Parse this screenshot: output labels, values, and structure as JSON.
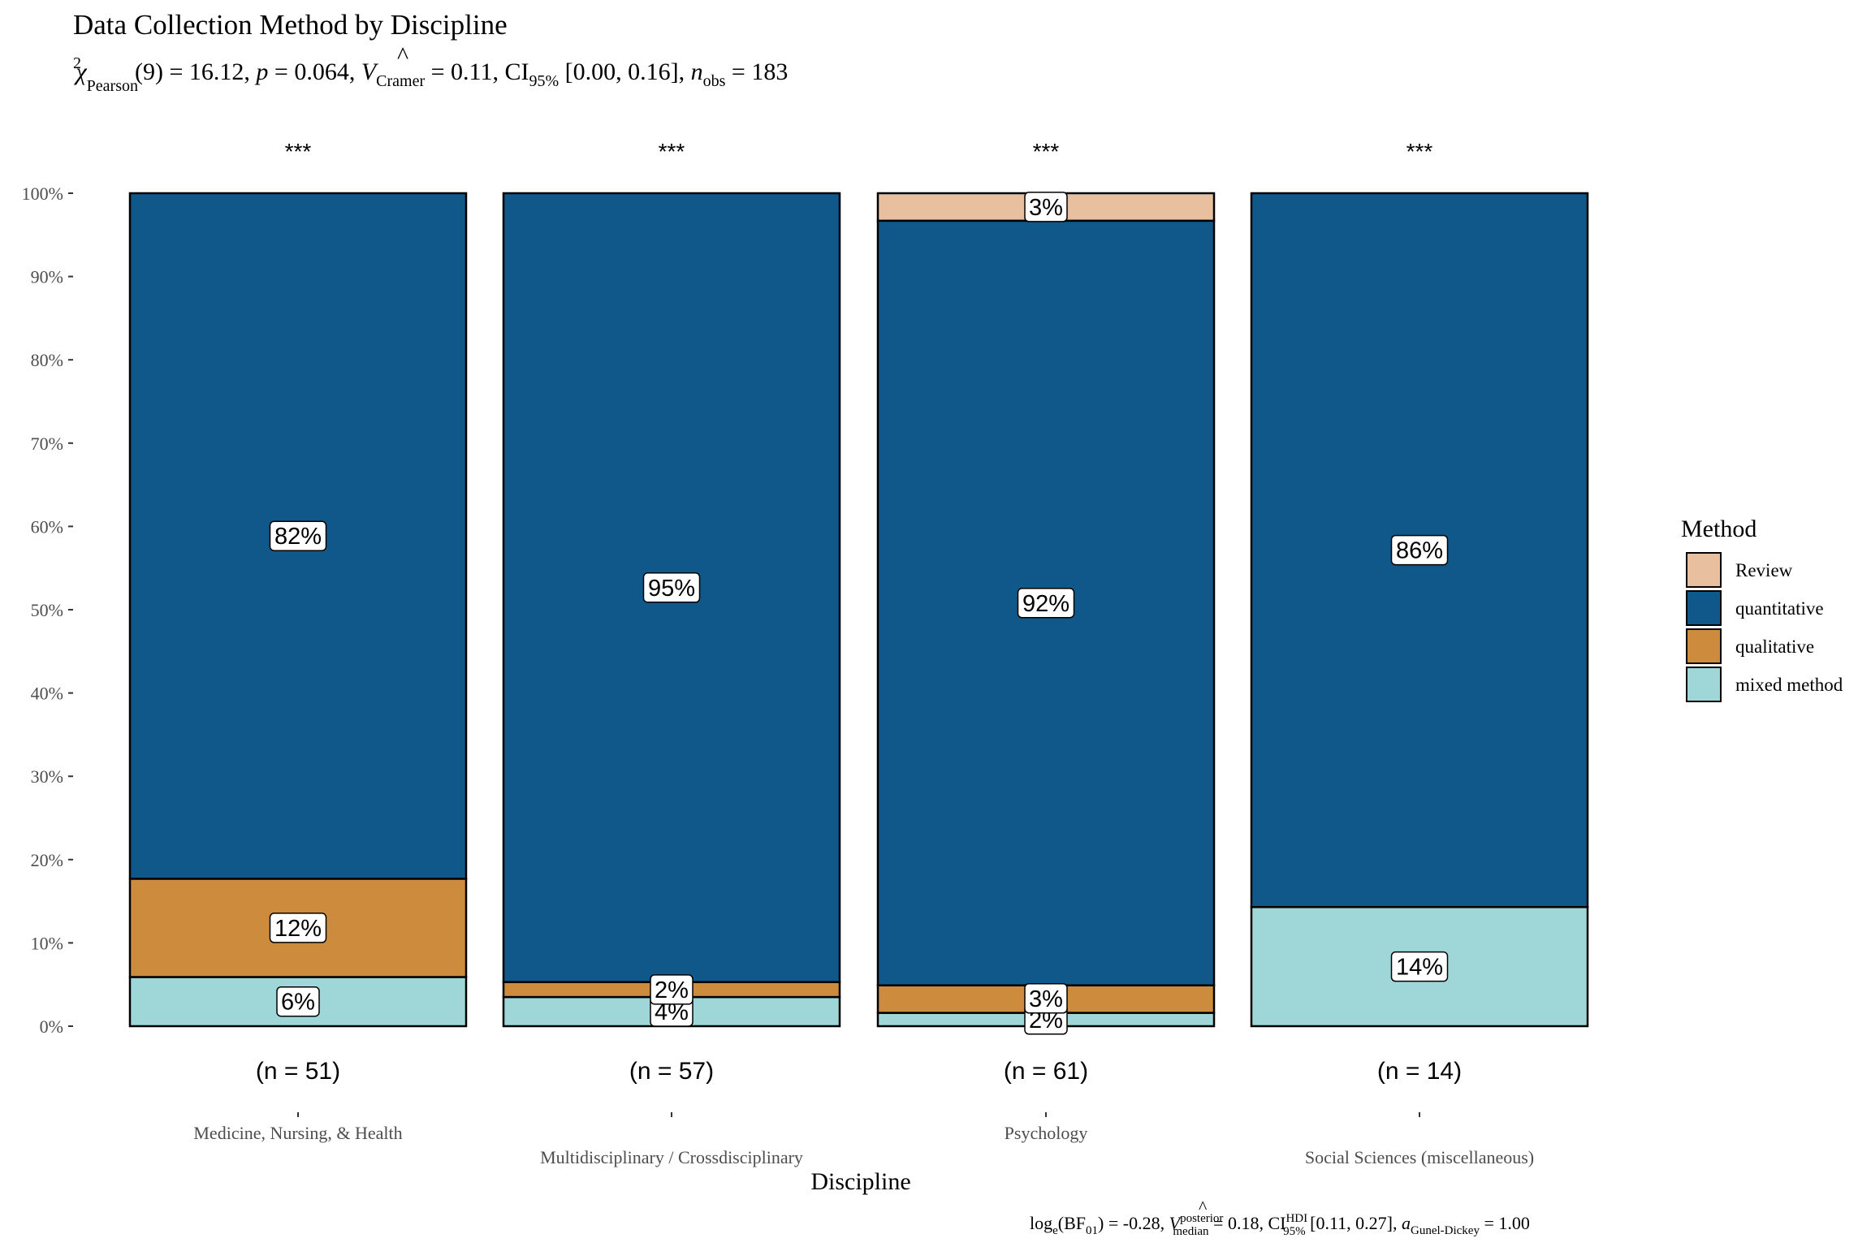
{
  "chart_data": {
    "type": "bar",
    "title": "Data Collection Method by Discipline",
    "subtitle": "χ²Pearson(9) = 16.12, p = 0.064, V̂Cramer = 0.11, CI95% [0.00, 0.16], nobs = 183",
    "subtitle_parts": {
      "chi": "χ",
      "chi_sup": "2",
      "chi_sub": "Pearson",
      "stat": "(9) = 16.12, ",
      "p_sym": "p",
      "p_val": " = 0.064, ",
      "v_sym": "V",
      "v_hat": "^",
      "v_sub": "Cramer",
      "v_val": " = 0.11, CI",
      "ci_sub": "95%",
      "ci_val": " [0.00, 0.16], ",
      "n_sym": "n",
      "n_sub": "obs",
      "n_val": " = 183"
    },
    "caption": "loge(BF01) = -0.28, V̂posterior median = 0.18, CIHDI 95% [0.11, 0.27], aGunel-Dickey = 1.00",
    "caption_parts": {
      "a": "log",
      "a_sub": "e",
      "b": "(BF",
      "b_sub": "01",
      "c": ") = -0.28, ",
      "v_sym": "V",
      "v_hat": "^",
      "v_sup": "posterior",
      "v_sub": "median",
      "d": " = 0.18, CI",
      "ci_sup": "HDI",
      "ci_sub": "95%",
      "e": " [0.11, 0.27], ",
      "a_sym": "a",
      "a_sym_sub": "Gunel-Dickey",
      "f": " = 1.00"
    },
    "xlabel": "Discipline",
    "ylabel": "",
    "ylim": [
      0,
      1
    ],
    "y_ticks": [
      "0%",
      "10%",
      "20%",
      "30%",
      "40%",
      "50%",
      "60%",
      "70%",
      "80%",
      "90%",
      "100%"
    ],
    "categories": [
      "Medicine, Nursing, & Health",
      "Multidisciplinary / Crossdisciplinary",
      "Psychology",
      "Social Sciences (miscellaneous)"
    ],
    "n_labels": [
      "(n = 51)",
      "(n = 57)",
      "(n = 61)",
      "(n = 14)"
    ],
    "significance": [
      "***",
      "***",
      "***",
      "***"
    ],
    "legend": {
      "title": "Method",
      "position": "right"
    },
    "series": [
      {
        "name": "mixed method",
        "color": "#9fd7d8",
        "values": [
          0.059,
          0.035,
          0.016,
          0.143
        ],
        "labels": [
          "6%",
          "4%",
          "2%",
          "14%"
        ]
      },
      {
        "name": "qualitative",
        "color": "#cc8b3d",
        "values": [
          0.118,
          0.018,
          0.033,
          0.0
        ],
        "labels": [
          "12%",
          "2%",
          "3%",
          ""
        ]
      },
      {
        "name": "quantitative",
        "color": "#10588a",
        "values": [
          0.823,
          0.947,
          0.918,
          0.857
        ],
        "labels": [
          "82%",
          "95%",
          "92%",
          "86%"
        ]
      },
      {
        "name": "Review",
        "color": "#e8c0a0",
        "values": [
          0.0,
          0.0,
          0.033,
          0.0
        ],
        "labels": [
          "",
          "",
          "3%",
          ""
        ]
      }
    ],
    "legend_order": [
      "Review",
      "quantitative",
      "qualitative",
      "mixed method"
    ],
    "grid": false
  }
}
